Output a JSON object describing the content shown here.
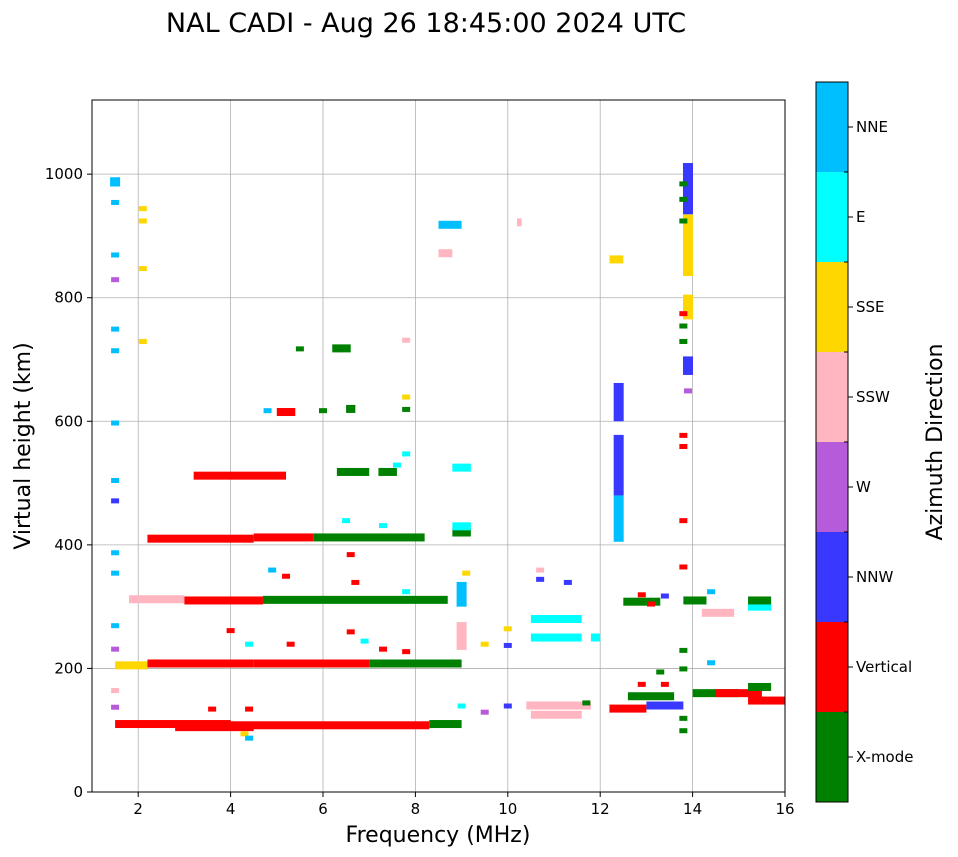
{
  "chart_data": {
    "type": "scatter",
    "title": "NAL CADI - Aug 26 18:45:00 2024 UTC",
    "xlabel": "Frequency (MHz)",
    "ylabel": "Virtual height (km)",
    "xlim": [
      1,
      16
    ],
    "ylim": [
      0,
      1120
    ],
    "x_ticks": [
      2,
      4,
      6,
      8,
      10,
      12,
      14,
      16
    ],
    "y_ticks": [
      0,
      200,
      400,
      600,
      800,
      1000
    ],
    "grid": true,
    "colorbar": {
      "title": "Azimuth Direction",
      "categories": [
        {
          "label": "X-mode",
          "color": "#008000"
        },
        {
          "label": "Vertical",
          "color": "#ff0000"
        },
        {
          "label": "NNW",
          "color": "#3838ff"
        },
        {
          "label": "W",
          "color": "#b65bd9"
        },
        {
          "label": "SSW",
          "color": "#ffb6c1"
        },
        {
          "label": "SSE",
          "color": "#ffd700"
        },
        {
          "label": "E",
          "color": "#00ffff"
        },
        {
          "label": "NNE",
          "color": "#00bfff"
        }
      ]
    },
    "segments": [
      {
        "x0": 1.5,
        "x1": 4.0,
        "y": 110,
        "dir": "Vertical"
      },
      {
        "x0": 4.0,
        "x1": 8.3,
        "y": 108,
        "dir": "Vertical"
      },
      {
        "x0": 8.3,
        "x1": 9.0,
        "y": 110,
        "dir": "X-mode"
      },
      {
        "x0": 2.8,
        "x1": 4.5,
        "y": 105,
        "dir": "Vertical"
      },
      {
        "x0": 1.5,
        "x1": 2.2,
        "y": 205,
        "dir": "SSE"
      },
      {
        "x0": 2.2,
        "x1": 4.5,
        "y": 208,
        "dir": "Vertical"
      },
      {
        "x0": 4.5,
        "x1": 7.0,
        "y": 208,
        "dir": "Vertical"
      },
      {
        "x0": 7.0,
        "x1": 9.0,
        "y": 208,
        "dir": "X-mode"
      },
      {
        "x0": 1.8,
        "x1": 3.0,
        "y": 312,
        "dir": "SSW"
      },
      {
        "x0": 3.0,
        "x1": 4.7,
        "y": 310,
        "dir": "Vertical"
      },
      {
        "x0": 4.7,
        "x1": 8.7,
        "y": 311,
        "dir": "X-mode"
      },
      {
        "x0": 2.2,
        "x1": 4.5,
        "y": 410,
        "dir": "Vertical"
      },
      {
        "x0": 4.5,
        "x1": 5.8,
        "y": 412,
        "dir": "Vertical"
      },
      {
        "x0": 5.8,
        "x1": 8.2,
        "y": 412,
        "dir": "X-mode"
      },
      {
        "x0": 8.8,
        "x1": 9.2,
        "y": 420,
        "dir": "X-mode"
      },
      {
        "x0": 3.2,
        "x1": 5.2,
        "y": 512,
        "dir": "Vertical"
      },
      {
        "x0": 6.3,
        "x1": 7.0,
        "y": 518,
        "dir": "X-mode"
      },
      {
        "x0": 7.2,
        "x1": 7.6,
        "y": 518,
        "dir": "X-mode"
      },
      {
        "x0": 5.0,
        "x1": 5.4,
        "y": 615,
        "dir": "Vertical"
      },
      {
        "x0": 6.5,
        "x1": 6.7,
        "y": 620,
        "dir": "X-mode"
      },
      {
        "x0": 6.2,
        "x1": 6.6,
        "y": 718,
        "dir": "X-mode"
      },
      {
        "x0": 8.5,
        "x1": 9.0,
        "y": 918,
        "dir": "NNE"
      },
      {
        "x0": 8.5,
        "x1": 8.8,
        "y": 872,
        "dir": "SSW"
      },
      {
        "x0": 10.2,
        "x1": 10.3,
        "y": 922,
        "dir": "SSW"
      },
      {
        "x0": 12.2,
        "x1": 12.5,
        "y": 862,
        "dir": "SSE"
      },
      {
        "x0": 8.8,
        "x1": 9.2,
        "y": 525,
        "dir": "E"
      },
      {
        "x0": 8.8,
        "x1": 9.2,
        "y": 430,
        "dir": "E"
      },
      {
        "x0": 10.5,
        "x1": 11.6,
        "y": 280,
        "dir": "E"
      },
      {
        "x0": 10.5,
        "x1": 11.6,
        "y": 250,
        "dir": "E"
      },
      {
        "x0": 10.4,
        "x1": 11.8,
        "y": 140,
        "dir": "SSW"
      },
      {
        "x0": 10.5,
        "x1": 11.6,
        "y": 125,
        "dir": "SSW"
      },
      {
        "x0": 11.8,
        "x1": 12.0,
        "y": 250,
        "dir": "E"
      },
      {
        "x0": 12.2,
        "x1": 13.0,
        "y": 135,
        "dir": "Vertical"
      },
      {
        "x0": 12.6,
        "x1": 13.6,
        "y": 155,
        "dir": "X-mode"
      },
      {
        "x0": 13.0,
        "x1": 13.8,
        "y": 140,
        "dir": "NNW"
      },
      {
        "x0": 12.5,
        "x1": 13.3,
        "y": 308,
        "dir": "X-mode"
      },
      {
        "x0": 13.8,
        "x1": 14.3,
        "y": 310,
        "dir": "X-mode"
      },
      {
        "x0": 14.2,
        "x1": 14.9,
        "y": 290,
        "dir": "SSW"
      },
      {
        "x0": 14.0,
        "x1": 15.0,
        "y": 160,
        "dir": "X-mode"
      },
      {
        "x0": 14.5,
        "x1": 15.5,
        "y": 160,
        "dir": "Vertical"
      },
      {
        "x0": 15.2,
        "x1": 16.0,
        "y": 148,
        "dir": "Vertical"
      },
      {
        "x0": 15.2,
        "x1": 15.7,
        "y": 300,
        "dir": "E"
      },
      {
        "x0": 15.2,
        "x1": 15.7,
        "y": 310,
        "dir": "X-mode"
      },
      {
        "x0": 15.2,
        "x1": 15.7,
        "y": 170,
        "dir": "X-mode"
      }
    ],
    "columns": [
      {
        "x": 12.4,
        "y0": 405,
        "y1": 480,
        "dir": "NNE"
      },
      {
        "x": 12.4,
        "y0": 480,
        "y1": 578,
        "dir": "NNW"
      },
      {
        "x": 12.4,
        "y0": 600,
        "y1": 662,
        "dir": "NNW"
      },
      {
        "x": 13.9,
        "y0": 835,
        "y1": 935,
        "dir": "SSE"
      },
      {
        "x": 13.9,
        "y0": 935,
        "y1": 1018,
        "dir": "NNW"
      },
      {
        "x": 13.9,
        "y0": 765,
        "y1": 805,
        "dir": "SSE"
      },
      {
        "x": 13.9,
        "y0": 675,
        "y1": 705,
        "dir": "NNW"
      },
      {
        "x": 1.5,
        "y0": 980,
        "y1": 995,
        "dir": "NNE"
      },
      {
        "x": 9.0,
        "y0": 230,
        "y1": 275,
        "dir": "SSW"
      },
      {
        "x": 9.0,
        "y0": 300,
        "y1": 340,
        "dir": "NNE"
      }
    ],
    "dots": [
      {
        "x": 1.5,
        "y": 870,
        "dir": "NNE"
      },
      {
        "x": 1.5,
        "y": 955,
        "dir": "NNE"
      },
      {
        "x": 1.5,
        "y": 830,
        "dir": "W"
      },
      {
        "x": 1.5,
        "y": 750,
        "dir": "NNE"
      },
      {
        "x": 1.5,
        "y": 715,
        "dir": "NNE"
      },
      {
        "x": 1.5,
        "y": 598,
        "dir": "NNE"
      },
      {
        "x": 1.5,
        "y": 505,
        "dir": "NNE"
      },
      {
        "x": 1.5,
        "y": 472,
        "dir": "NNW"
      },
      {
        "x": 1.5,
        "y": 388,
        "dir": "NNE"
      },
      {
        "x": 1.5,
        "y": 355,
        "dir": "NNE"
      },
      {
        "x": 1.5,
        "y": 270,
        "dir": "NNE"
      },
      {
        "x": 1.5,
        "y": 232,
        "dir": "W"
      },
      {
        "x": 1.5,
        "y": 165,
        "dir": "SSW"
      },
      {
        "x": 1.5,
        "y": 138,
        "dir": "W"
      },
      {
        "x": 2.1,
        "y": 945,
        "dir": "SSE"
      },
      {
        "x": 2.1,
        "y": 925,
        "dir": "SSE"
      },
      {
        "x": 2.1,
        "y": 848,
        "dir": "SSE"
      },
      {
        "x": 2.1,
        "y": 730,
        "dir": "SSE"
      },
      {
        "x": 7.8,
        "y": 732,
        "dir": "SSW"
      },
      {
        "x": 7.8,
        "y": 640,
        "dir": "SSE"
      },
      {
        "x": 7.8,
        "y": 548,
        "dir": "E"
      },
      {
        "x": 7.6,
        "y": 530,
        "dir": "E"
      },
      {
        "x": 7.8,
        "y": 620,
        "dir": "X-mode"
      },
      {
        "x": 5.5,
        "y": 718,
        "dir": "X-mode"
      },
      {
        "x": 4.8,
        "y": 618,
        "dir": "NNE"
      },
      {
        "x": 6.0,
        "y": 618,
        "dir": "X-mode"
      },
      {
        "x": 6.5,
        "y": 440,
        "dir": "E"
      },
      {
        "x": 7.3,
        "y": 432,
        "dir": "E"
      },
      {
        "x": 6.6,
        "y": 385,
        "dir": "Vertical"
      },
      {
        "x": 4.9,
        "y": 360,
        "dir": "NNE"
      },
      {
        "x": 5.2,
        "y": 350,
        "dir": "Vertical"
      },
      {
        "x": 6.7,
        "y": 340,
        "dir": "Vertical"
      },
      {
        "x": 7.8,
        "y": 325,
        "dir": "E"
      },
      {
        "x": 9.1,
        "y": 355,
        "dir": "SSE"
      },
      {
        "x": 4.0,
        "y": 262,
        "dir": "Vertical"
      },
      {
        "x": 4.4,
        "y": 240,
        "dir": "E"
      },
      {
        "x": 5.3,
        "y": 240,
        "dir": "Vertical"
      },
      {
        "x": 6.6,
        "y": 260,
        "dir": "Vertical"
      },
      {
        "x": 6.9,
        "y": 245,
        "dir": "E"
      },
      {
        "x": 7.3,
        "y": 232,
        "dir": "Vertical"
      },
      {
        "x": 7.8,
        "y": 228,
        "dir": "Vertical"
      },
      {
        "x": 9.5,
        "y": 240,
        "dir": "SSE"
      },
      {
        "x": 10.0,
        "y": 265,
        "dir": "SSE"
      },
      {
        "x": 10.0,
        "y": 238,
        "dir": "NNW"
      },
      {
        "x": 10.7,
        "y": 360,
        "dir": "SSW"
      },
      {
        "x": 10.7,
        "y": 345,
        "dir": "NNW"
      },
      {
        "x": 11.3,
        "y": 340,
        "dir": "NNW"
      },
      {
        "x": 12.9,
        "y": 320,
        "dir": "Vertical"
      },
      {
        "x": 13.1,
        "y": 305,
        "dir": "Vertical"
      },
      {
        "x": 13.4,
        "y": 318,
        "dir": "NNW"
      },
      {
        "x": 14.4,
        "y": 325,
        "dir": "NNE"
      },
      {
        "x": 14.4,
        "y": 210,
        "dir": "NNE"
      },
      {
        "x": 13.8,
        "y": 230,
        "dir": "X-mode"
      },
      {
        "x": 13.8,
        "y": 440,
        "dir": "Vertical"
      },
      {
        "x": 13.8,
        "y": 578,
        "dir": "Vertical"
      },
      {
        "x": 13.8,
        "y": 560,
        "dir": "Vertical"
      },
      {
        "x": 13.8,
        "y": 365,
        "dir": "Vertical"
      },
      {
        "x": 13.9,
        "y": 650,
        "dir": "W"
      },
      {
        "x": 13.8,
        "y": 775,
        "dir": "Vertical"
      },
      {
        "x": 13.8,
        "y": 755,
        "dir": "X-mode"
      },
      {
        "x": 13.8,
        "y": 730,
        "dir": "X-mode"
      },
      {
        "x": 13.8,
        "y": 925,
        "dir": "X-mode"
      },
      {
        "x": 13.8,
        "y": 960,
        "dir": "X-mode"
      },
      {
        "x": 13.8,
        "y": 985,
        "dir": "X-mode"
      },
      {
        "x": 13.8,
        "y": 200,
        "dir": "X-mode"
      },
      {
        "x": 13.8,
        "y": 100,
        "dir": "X-mode"
      },
      {
        "x": 13.8,
        "y": 120,
        "dir": "X-mode"
      },
      {
        "x": 10.0,
        "y": 140,
        "dir": "NNW"
      },
      {
        "x": 9.0,
        "y": 140,
        "dir": "E"
      },
      {
        "x": 9.5,
        "y": 130,
        "dir": "W"
      },
      {
        "x": 4.3,
        "y": 95,
        "dir": "SSE"
      },
      {
        "x": 4.4,
        "y": 88,
        "dir": "NNE"
      },
      {
        "x": 3.6,
        "y": 135,
        "dir": "Vertical"
      },
      {
        "x": 4.4,
        "y": 135,
        "dir": "Vertical"
      },
      {
        "x": 11.7,
        "y": 145,
        "dir": "X-mode"
      },
      {
        "x": 12.9,
        "y": 175,
        "dir": "Vertical"
      },
      {
        "x": 13.4,
        "y": 175,
        "dir": "Vertical"
      },
      {
        "x": 13.3,
        "y": 195,
        "dir": "X-mode"
      }
    ]
  }
}
